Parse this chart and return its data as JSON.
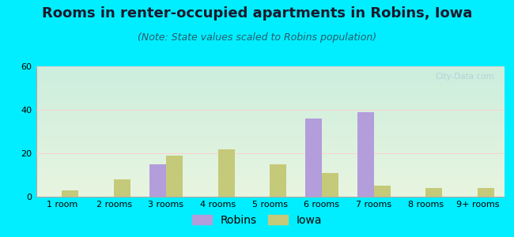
{
  "title": "Rooms in renter-occupied apartments in Robins, Iowa",
  "subtitle": "(Note: State values scaled to Robins population)",
  "categories": [
    "1 room",
    "2 rooms",
    "3 rooms",
    "4 rooms",
    "5 rooms",
    "6 rooms",
    "7 rooms",
    "8 rooms",
    "9+ rooms"
  ],
  "robins_values": [
    0,
    0,
    15,
    0,
    0,
    36,
    39,
    0,
    0
  ],
  "iowa_values": [
    3,
    8,
    19,
    22,
    15,
    11,
    5,
    4,
    4
  ],
  "robins_color": "#b39ddb",
  "iowa_color": "#c5c97a",
  "bg_outer": "#00eeff",
  "bg_chart_top": "#cceedd",
  "bg_chart_bottom": "#d0eef8",
  "ylim": [
    0,
    60
  ],
  "yticks": [
    0,
    20,
    40,
    60
  ],
  "bar_width": 0.32,
  "title_fontsize": 13,
  "subtitle_fontsize": 9,
  "tick_fontsize": 8,
  "legend_fontsize": 10,
  "watermark": "City-Data.com"
}
